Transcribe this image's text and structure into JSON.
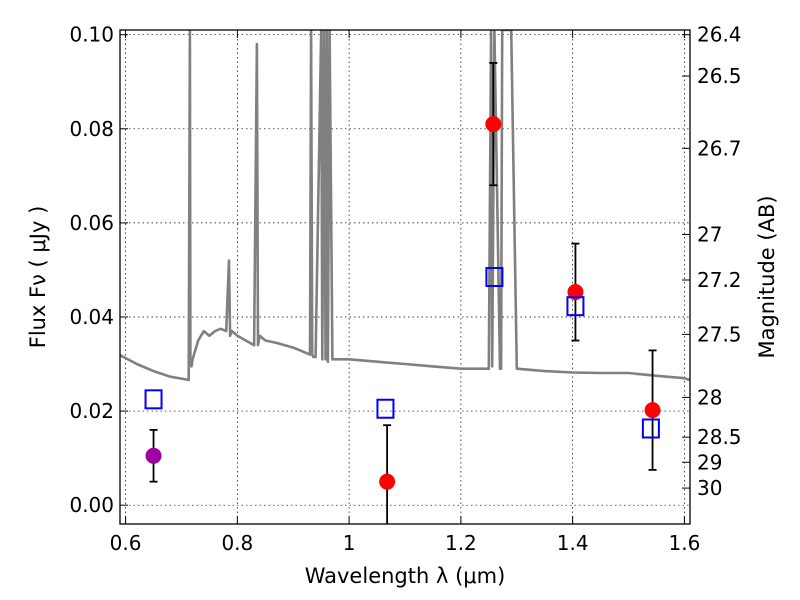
{
  "chart_data": {
    "type": "scatter",
    "xlabel": "Wavelength  λ (μm)",
    "ylabel": "Flux  Fν  ( μJy )",
    "y2label": "Magnitude (AB)",
    "xlim": [
      0.59,
      1.61
    ],
    "ylim": [
      -0.004,
      0.101
    ],
    "grid": true,
    "x_ticks": [
      {
        "value": 0.6,
        "label": "0.6"
      },
      {
        "value": 0.8,
        "label": "0.8"
      },
      {
        "value": 1.0,
        "label": "1"
      },
      {
        "value": 1.2,
        "label": "1.2"
      },
      {
        "value": 1.4,
        "label": "1.4"
      },
      {
        "value": 1.6,
        "label": "1.6"
      }
    ],
    "y_ticks": [
      {
        "value": 0.0,
        "label": "0.00"
      },
      {
        "value": 0.02,
        "label": "0.02"
      },
      {
        "value": 0.04,
        "label": "0.04"
      },
      {
        "value": 0.06,
        "label": "0.06"
      },
      {
        "value": 0.08,
        "label": "0.08"
      },
      {
        "value": 0.1,
        "label": "0.10"
      }
    ],
    "magnitude_ticks": [
      "26.4",
      "26.5",
      "26.7",
      "27",
      "27.2",
      "27.5",
      "28",
      "28.5",
      "29",
      "30"
    ],
    "series": [
      {
        "kind": "model-spectrum",
        "color": "#808080",
        "x": [
          0.59,
          0.62,
          0.65,
          0.68,
          0.7,
          0.71,
          0.713,
          0.715,
          0.716,
          0.718,
          0.72,
          0.73,
          0.74,
          0.75,
          0.76,
          0.77,
          0.78,
          0.785,
          0.787,
          0.79,
          0.8,
          0.83,
          0.835,
          0.837,
          0.84,
          0.85,
          0.87,
          0.9,
          0.93,
          0.932,
          0.934,
          0.936,
          0.94,
          0.95,
          0.952,
          0.955,
          0.958,
          0.96,
          0.962,
          0.965,
          0.97,
          1.0,
          1.05,
          1.1,
          1.15,
          1.2,
          1.25,
          1.254,
          1.256,
          1.26,
          1.27,
          1.272,
          1.274,
          1.28,
          1.29,
          1.3,
          1.35,
          1.4,
          1.45,
          1.5,
          1.55,
          1.6,
          1.61
        ],
        "y": [
          0.0319,
          0.03,
          0.0285,
          0.0273,
          0.0269,
          0.0267,
          0.0266,
          0.101,
          0.031,
          0.0295,
          0.031,
          0.035,
          0.037,
          0.036,
          0.037,
          0.0375,
          0.037,
          0.052,
          0.036,
          0.037,
          0.036,
          0.034,
          0.098,
          0.034,
          0.036,
          0.035,
          0.0345,
          0.0335,
          0.032,
          0.101,
          0.032,
          0.0315,
          0.0315,
          0.101,
          0.031,
          0.101,
          0.031,
          0.101,
          0.0305,
          0.101,
          0.031,
          0.031,
          0.0305,
          0.03,
          0.0295,
          0.029,
          0.029,
          0.101,
          0.0295,
          0.101,
          0.029,
          0.029,
          0.101,
          0.101,
          0.101,
          0.029,
          0.0285,
          0.0282,
          0.0281,
          0.0281,
          0.0275,
          0.027,
          0.0266
        ]
      },
      {
        "kind": "observed-purple",
        "color": "#a000a0",
        "x": [
          0.65
        ],
        "y": [
          0.0105
        ],
        "err": [
          0.0055
        ]
      },
      {
        "kind": "observed-red",
        "color": "#ff0000",
        "x": [
          1.068,
          1.258,
          1.405,
          1.543
        ],
        "y": [
          0.005,
          0.081,
          0.0453,
          0.0202
        ],
        "err": [
          0.012,
          0.013,
          0.0103,
          0.0127
        ]
      },
      {
        "kind": "model-photometry",
        "color": "#0000ff",
        "x": [
          0.65,
          1.065,
          1.26,
          1.405,
          1.54
        ],
        "y": [
          0.0225,
          0.0205,
          0.0485,
          0.0423,
          0.0163
        ]
      }
    ]
  }
}
